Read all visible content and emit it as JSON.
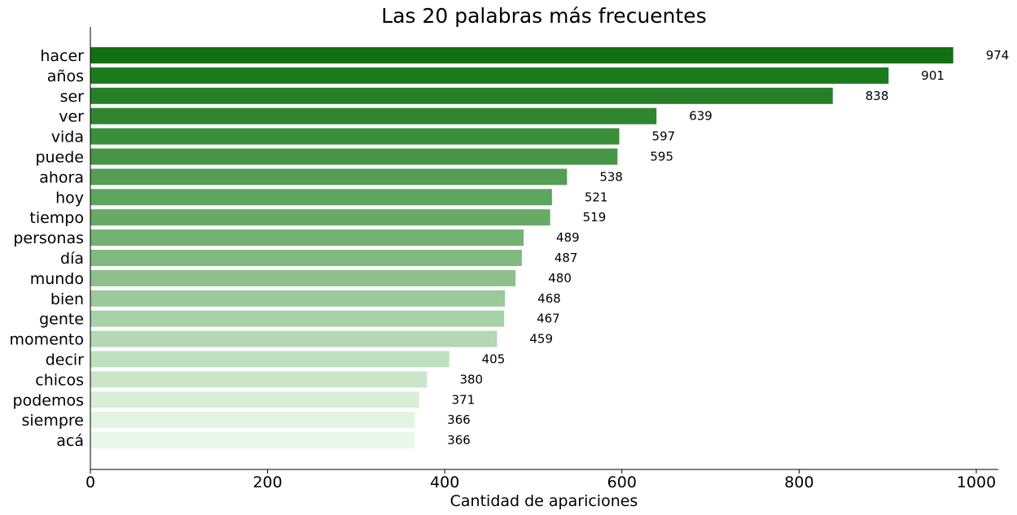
{
  "chart_data": {
    "type": "bar",
    "orientation": "horizontal",
    "title": "Las 20 palabras más frecuentes",
    "xlabel": "Cantidad de apariciones",
    "ylabel": "",
    "xlim": [
      0,
      1020
    ],
    "xticks": [
      0,
      200,
      400,
      600,
      800,
      1000
    ],
    "xtick_labels": [
      "0",
      "200",
      "400",
      "600",
      "800",
      "1000"
    ],
    "grid": false,
    "categories": [
      "hacer",
      "años",
      "ser",
      "ver",
      "vida",
      "puede",
      "ahora",
      "hoy",
      "tiempo",
      "personas",
      "día",
      "mundo",
      "bien",
      "gente",
      "momento",
      "decir",
      "chicos",
      "podemos",
      "siempre",
      "acá"
    ],
    "values": [
      974,
      901,
      838,
      639,
      597,
      595,
      538,
      521,
      519,
      489,
      487,
      480,
      468,
      467,
      459,
      405,
      380,
      371,
      366,
      366
    ],
    "value_labels": [
      "974",
      "901",
      "838",
      "639",
      "597",
      "595",
      "538",
      "521",
      "519",
      "489",
      "487",
      "480",
      "468",
      "467",
      "459",
      "405",
      "380",
      "371",
      "366",
      "366"
    ],
    "colors": [
      "#137012",
      "#1b7a1b",
      "#267f26",
      "#2f862f",
      "#3a8f3a",
      "#469546",
      "#559d55",
      "#5ca55c",
      "#66aa66",
      "#73b273",
      "#80b980",
      "#8dc08d",
      "#9ac99a",
      "#a7d1a7",
      "#b3d8b3",
      "#bfe0bf",
      "#c9e6c9",
      "#d6efd6",
      "#e1f5e1",
      "#e8f8e8"
    ]
  }
}
